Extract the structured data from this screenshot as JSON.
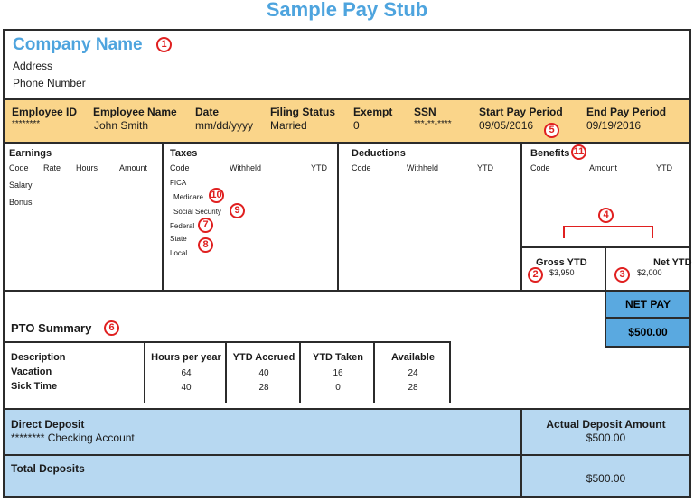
{
  "title": "Sample Pay Stub",
  "company": {
    "name": "Company Name",
    "address": "Address",
    "phone": "Phone Number"
  },
  "employee_band": {
    "columns": [
      {
        "header": "Employee ID",
        "value": "********"
      },
      {
        "header": "Employee Name",
        "value": "John Smith"
      },
      {
        "header": "Date",
        "value": "mm/dd/yyyy"
      },
      {
        "header": "Filing Status",
        "value": "Married"
      },
      {
        "header": "Exempt",
        "value": "0"
      },
      {
        "header": "SSN",
        "value": "***-**-****"
      },
      {
        "header": "Start Pay Period",
        "value": "09/05/2016"
      },
      {
        "header": "End Pay Period",
        "value": "09/19/2016"
      }
    ]
  },
  "earnings": {
    "title": "Earnings",
    "headers": [
      "Code",
      "Rate",
      "Hours",
      "Amount"
    ],
    "rows": [
      "Salary",
      "Bonus"
    ]
  },
  "taxes": {
    "title": "Taxes",
    "headers": [
      "Code",
      "Withheld",
      "YTD"
    ],
    "rows": [
      "FICA",
      "Medicare",
      "Social Security",
      "Federal",
      "State",
      "Local"
    ]
  },
  "deductions": {
    "title": "Deductions",
    "headers": [
      "Code",
      "Withheld",
      "YTD"
    ]
  },
  "benefits": {
    "title": "Benefits",
    "headers": [
      "Code",
      "Amount",
      "YTD"
    ]
  },
  "gross_ytd": {
    "label": "Gross YTD",
    "value": "$3,950"
  },
  "net_ytd": {
    "label": "Net YTD",
    "value": "$2,000"
  },
  "net_pay": {
    "label": "NET PAY",
    "value": "$500.00"
  },
  "pto": {
    "title": "PTO Summary",
    "headers": [
      "Description",
      "Hours per year",
      "YTD Accrued",
      "YTD Taken",
      "Available"
    ],
    "rows": [
      [
        "Vacation",
        "64",
        "40",
        "16",
        "24"
      ],
      [
        "Sick Time",
        "40",
        "28",
        "0",
        "28"
      ]
    ]
  },
  "direct_deposit": {
    "title": "Direct Deposit",
    "account": "******** Checking Account",
    "amount_label": "Actual Deposit Amount",
    "amount": "$500.00"
  },
  "total_deposits": {
    "title": "Total Deposits",
    "amount": "$500.00"
  },
  "markers": [
    "1",
    "2",
    "3",
    "4",
    "5",
    "6",
    "7",
    "8",
    "9",
    "10",
    "11"
  ],
  "colors": {
    "accent_blue": "#4ea4de",
    "band_yellow": "#fad58a",
    "deposit_blue": "#b7d8f1",
    "netpay_blue": "#5aa9e0",
    "marker_red": "#e02020"
  }
}
